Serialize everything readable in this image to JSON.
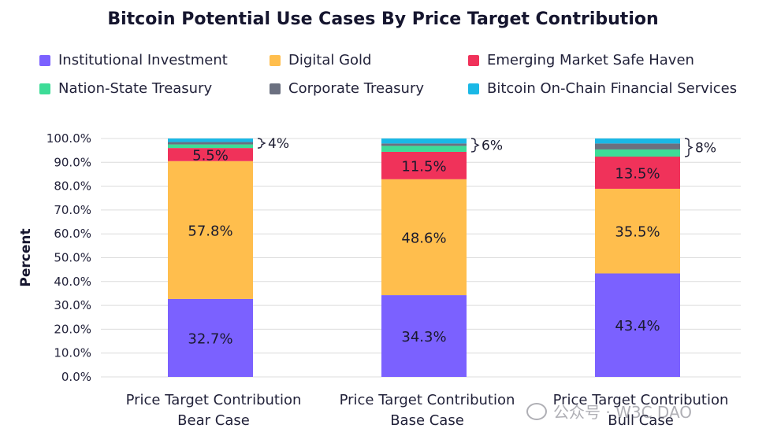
{
  "chart_data": {
    "type": "bar",
    "stacked": true,
    "title": "Bitcoin Potential Use Cases By Price Target Contribution",
    "ylabel": "Percent",
    "ylim": [
      0,
      100
    ],
    "yticks": [
      "0.0%",
      "10.0%",
      "20.0%",
      "30.0%",
      "40.0%",
      "50.0%",
      "60.0%",
      "70.0%",
      "80.0%",
      "90.0%",
      "100.0%"
    ],
    "categories": [
      [
        "Price Target Contribution",
        "Bear Case"
      ],
      [
        "Price Target Contribution",
        "Base Case"
      ],
      [
        "Price Target Contribution",
        "Bull Case"
      ]
    ],
    "legend_placement": "top",
    "series": [
      {
        "name": "Institutional Investment",
        "color": "#7b61ff",
        "values": [
          32.7,
          34.3,
          43.4
        ],
        "labels": [
          "32.7%",
          "34.3%",
          "43.4%"
        ]
      },
      {
        "name": "Digital Gold",
        "color": "#ffbe4d",
        "values": [
          57.8,
          48.6,
          35.5
        ],
        "labels": [
          "57.8%",
          "48.6%",
          "35.5%"
        ]
      },
      {
        "name": "Emerging Market Safe Haven",
        "color": "#f0325a",
        "values": [
          5.5,
          11.5,
          13.5
        ],
        "labels": [
          "5.5%",
          "11.5%",
          "13.5%"
        ]
      },
      {
        "name": "Nation-State Treasury",
        "color": "#3ddc97",
        "values": [
          1.5,
          2.5,
          3.0
        ],
        "labels": [
          "",
          "",
          ""
        ]
      },
      {
        "name": "Corporate Treasury",
        "color": "#6b7080",
        "values": [
          1.0,
          1.0,
          2.5
        ],
        "labels": [
          "",
          "",
          ""
        ]
      },
      {
        "name": "Bitcoin On-Chain Financial Services",
        "color": "#1ab8e6",
        "values": [
          1.5,
          2.1,
          2.1
        ],
        "labels": [
          "",
          "",
          ""
        ]
      }
    ],
    "annotations": [
      "4%",
      "6%",
      "8%"
    ]
  },
  "watermark": "公众号 · W3C DAO"
}
